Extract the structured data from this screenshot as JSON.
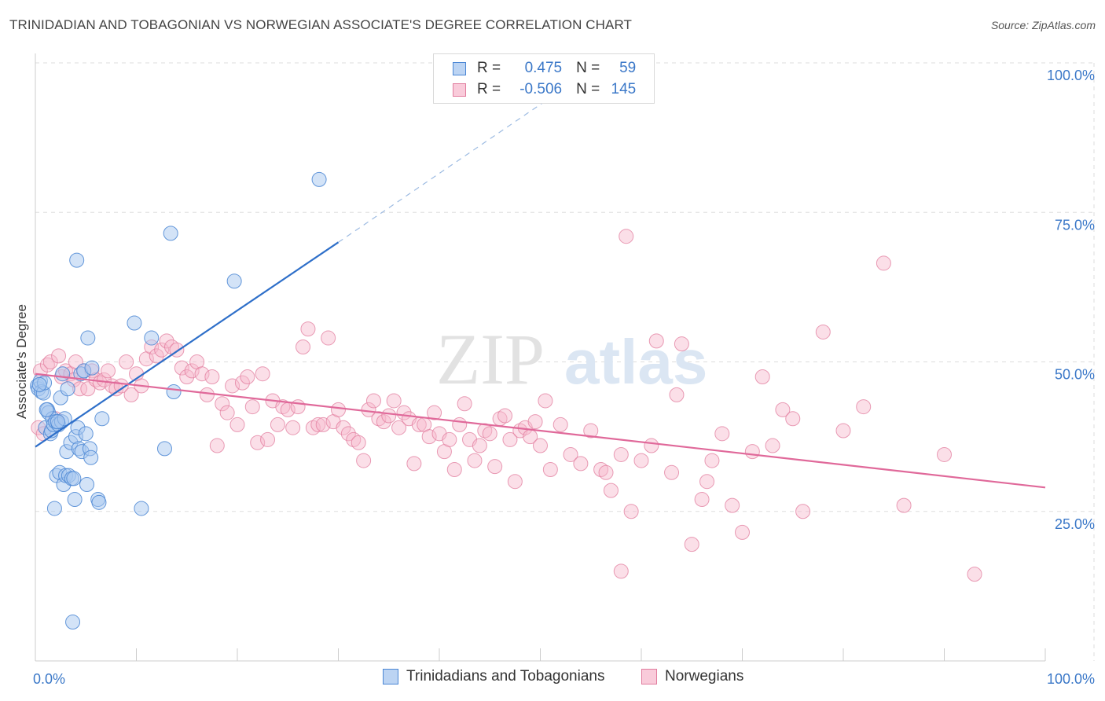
{
  "title": "TRINIDADIAN AND TOBAGONIAN VS NORWEGIAN ASSOCIATE'S DEGREE CORRELATION CHART",
  "source": "Source: ZipAtlas.com",
  "watermark": {
    "zip": "ZIP",
    "atlas": "atlas"
  },
  "legend": {
    "rows": [
      {
        "r_label": "R =",
        "r_value": "0.475",
        "n_label": "N =",
        "n_value": "59"
      },
      {
        "r_label": "R =",
        "r_value": "-0.506",
        "n_label": "N =",
        "n_value": "145"
      }
    ]
  },
  "colors": {
    "blue_fill": "#a8c8f0",
    "blue_stroke": "#4a86d4",
    "blue_line": "#2e6fc9",
    "pink_fill": "#f6b8cc",
    "pink_stroke": "#e17c9e",
    "pink_line": "#e0699a",
    "grid": "#dddddd",
    "tick_label": "#3b78c8"
  },
  "chart_data": {
    "type": "scatter",
    "title": "TRINIDADIAN AND TOBAGONIAN VS NORWEGIAN ASSOCIATE'S DEGREE CORRELATION CHART",
    "xlabel": "",
    "ylabel": "Associate's Degree",
    "xlim": [
      0,
      100
    ],
    "ylim": [
      0,
      100
    ],
    "x_tick_labels": [
      "0.0%",
      "100.0%"
    ],
    "y_ticks": [
      25,
      50,
      75,
      100
    ],
    "y_tick_labels": [
      "25.0%",
      "50.0%",
      "75.0%",
      "100.0%"
    ],
    "grid": true,
    "legend_position": "top-center",
    "series": [
      {
        "name": "Trinidadians and Tobagonians",
        "color": "#4a86d4",
        "r": 0.475,
        "n": 59,
        "trend": {
          "x0": 0,
          "y0": 35.8,
          "x1": 30,
          "y1": 70.0,
          "dash_to_x": 53,
          "dash_to_y": 96.5
        },
        "points": [
          [
            0.2,
            46.0
          ],
          [
            0.3,
            45.5
          ],
          [
            0.5,
            46.8
          ],
          [
            0.6,
            45.0
          ],
          [
            0.8,
            44.8
          ],
          [
            0.9,
            46.5
          ],
          [
            1.0,
            39.0
          ],
          [
            1.2,
            42.0
          ],
          [
            1.3,
            41.5
          ],
          [
            1.5,
            38.0
          ],
          [
            1.6,
            38.5
          ],
          [
            1.7,
            40.5
          ],
          [
            1.8,
            39.5
          ],
          [
            1.9,
            25.5
          ],
          [
            2.0,
            40.0
          ],
          [
            2.1,
            31.0
          ],
          [
            2.3,
            39.5
          ],
          [
            2.4,
            31.5
          ],
          [
            2.5,
            44.0
          ],
          [
            2.6,
            40.0
          ],
          [
            2.7,
            48.0
          ],
          [
            2.8,
            29.5
          ],
          [
            2.9,
            40.5
          ],
          [
            3.0,
            31.0
          ],
          [
            3.1,
            35.0
          ],
          [
            3.2,
            45.5
          ],
          [
            3.3,
            31.0
          ],
          [
            3.5,
            36.5
          ],
          [
            3.6,
            30.5
          ],
          [
            3.7,
            6.5
          ],
          [
            3.8,
            30.5
          ],
          [
            3.9,
            27.0
          ],
          [
            4.0,
            37.5
          ],
          [
            4.1,
            67.0
          ],
          [
            4.2,
            39.0
          ],
          [
            4.3,
            35.5
          ],
          [
            4.5,
            48.0
          ],
          [
            4.6,
            35.0
          ],
          [
            4.8,
            48.5
          ],
          [
            5.0,
            38.0
          ],
          [
            5.1,
            29.5
          ],
          [
            5.2,
            54.0
          ],
          [
            5.4,
            35.5
          ],
          [
            5.5,
            34.0
          ],
          [
            5.6,
            49.0
          ],
          [
            6.2,
            27.0
          ],
          [
            6.3,
            26.5
          ],
          [
            6.6,
            40.5
          ],
          [
            9.8,
            56.5
          ],
          [
            10.5,
            25.5
          ],
          [
            11.5,
            54.0
          ],
          [
            12.8,
            35.5
          ],
          [
            13.4,
            71.5
          ],
          [
            13.7,
            45.0
          ],
          [
            19.7,
            63.5
          ],
          [
            28.1,
            80.5
          ],
          [
            0.4,
            46.2
          ],
          [
            1.1,
            42.0
          ],
          [
            2.2,
            40.0
          ]
        ]
      },
      {
        "name": "Norwegians",
        "color": "#e17c9e",
        "r": -0.506,
        "n": 145,
        "trend": {
          "x0": 0,
          "y0": 48.0,
          "x1": 100,
          "y1": 29.0
        },
        "points": [
          [
            0.3,
            39.0
          ],
          [
            0.5,
            48.5
          ],
          [
            0.8,
            38.0
          ],
          [
            1.2,
            49.5
          ],
          [
            1.5,
            50.0
          ],
          [
            2.0,
            40.5
          ],
          [
            2.3,
            51.0
          ],
          [
            2.6,
            47.5
          ],
          [
            3.0,
            48.5
          ],
          [
            3.5,
            48.0
          ],
          [
            3.8,
            47.0
          ],
          [
            4.0,
            50.0
          ],
          [
            4.4,
            45.5
          ],
          [
            4.8,
            48.5
          ],
          [
            5.2,
            45.5
          ],
          [
            5.6,
            48.5
          ],
          [
            6.0,
            47.0
          ],
          [
            6.4,
            46.5
          ],
          [
            6.8,
            47.0
          ],
          [
            7.2,
            48.5
          ],
          [
            7.6,
            46.0
          ],
          [
            8.0,
            45.5
          ],
          [
            8.5,
            46.0
          ],
          [
            9.0,
            50.0
          ],
          [
            9.5,
            44.5
          ],
          [
            10.0,
            48.0
          ],
          [
            10.5,
            46.0
          ],
          [
            11.0,
            50.5
          ],
          [
            11.5,
            52.5
          ],
          [
            12.0,
            51.0
          ],
          [
            12.5,
            52.0
          ],
          [
            13.0,
            53.5
          ],
          [
            13.5,
            52.5
          ],
          [
            14.0,
            52.0
          ],
          [
            14.5,
            49.0
          ],
          [
            15.0,
            47.5
          ],
          [
            15.5,
            48.5
          ],
          [
            16.0,
            50.0
          ],
          [
            16.5,
            48.0
          ],
          [
            17.0,
            44.5
          ],
          [
            17.5,
            47.5
          ],
          [
            18.0,
            36.0
          ],
          [
            18.5,
            43.0
          ],
          [
            19.0,
            41.5
          ],
          [
            19.5,
            46.0
          ],
          [
            20.0,
            39.5
          ],
          [
            20.5,
            46.5
          ],
          [
            21.0,
            47.5
          ],
          [
            21.5,
            42.5
          ],
          [
            22.0,
            36.5
          ],
          [
            22.5,
            48.0
          ],
          [
            23.0,
            37.0
          ],
          [
            23.5,
            43.5
          ],
          [
            24.0,
            39.5
          ],
          [
            24.5,
            42.5
          ],
          [
            25.0,
            42.0
          ],
          [
            25.5,
            39.0
          ],
          [
            26.0,
            42.5
          ],
          [
            26.5,
            52.5
          ],
          [
            27.0,
            55.5
          ],
          [
            27.5,
            39.0
          ],
          [
            28.0,
            39.5
          ],
          [
            28.5,
            39.5
          ],
          [
            29.0,
            54.0
          ],
          [
            29.5,
            40.0
          ],
          [
            30.0,
            42.0
          ],
          [
            30.5,
            39.0
          ],
          [
            31.0,
            38.0
          ],
          [
            31.5,
            37.0
          ],
          [
            32.0,
            36.5
          ],
          [
            32.5,
            33.5
          ],
          [
            33.0,
            42.0
          ],
          [
            33.5,
            43.5
          ],
          [
            34.0,
            40.5
          ],
          [
            34.5,
            40.0
          ],
          [
            35.0,
            41.0
          ],
          [
            35.5,
            43.5
          ],
          [
            36.0,
            39.0
          ],
          [
            36.5,
            41.5
          ],
          [
            37.0,
            40.5
          ],
          [
            37.5,
            33.0
          ],
          [
            38.0,
            39.5
          ],
          [
            38.5,
            39.5
          ],
          [
            39.0,
            37.5
          ],
          [
            39.5,
            41.5
          ],
          [
            40.0,
            38.0
          ],
          [
            40.5,
            35.0
          ],
          [
            41.0,
            37.0
          ],
          [
            41.5,
            32.0
          ],
          [
            42.0,
            39.5
          ],
          [
            42.5,
            43.0
          ],
          [
            43.0,
            37.0
          ],
          [
            43.5,
            33.5
          ],
          [
            44.0,
            36.0
          ],
          [
            44.5,
            38.5
          ],
          [
            45.0,
            38.0
          ],
          [
            45.5,
            32.5
          ],
          [
            46.0,
            40.5
          ],
          [
            46.5,
            41.0
          ],
          [
            47.0,
            37.0
          ],
          [
            47.5,
            30.0
          ],
          [
            48.0,
            38.5
          ],
          [
            48.5,
            39.0
          ],
          [
            49.0,
            37.5
          ],
          [
            49.5,
            40.0
          ],
          [
            50.0,
            36.0
          ],
          [
            50.5,
            43.5
          ],
          [
            51.0,
            32.0
          ],
          [
            52.0,
            39.5
          ],
          [
            53.0,
            34.5
          ],
          [
            54.0,
            33.0
          ],
          [
            55.0,
            38.5
          ],
          [
            56.0,
            32.0
          ],
          [
            56.5,
            31.5
          ],
          [
            57.0,
            28.5
          ],
          [
            58.0,
            34.5
          ],
          [
            58.5,
            71.0
          ],
          [
            59.0,
            25.0
          ],
          [
            60.0,
            33.5
          ],
          [
            61.0,
            36.0
          ],
          [
            61.5,
            53.5
          ],
          [
            63.0,
            31.5
          ],
          [
            63.5,
            44.5
          ],
          [
            64.0,
            53.0
          ],
          [
            65.0,
            19.5
          ],
          [
            66.0,
            27.0
          ],
          [
            67.0,
            33.5
          ],
          [
            68.0,
            38.0
          ],
          [
            69.0,
            26.0
          ],
          [
            70.0,
            21.5
          ],
          [
            71.0,
            35.0
          ],
          [
            72.0,
            47.5
          ],
          [
            74.0,
            42.0
          ],
          [
            75.0,
            40.5
          ],
          [
            76.0,
            25.0
          ],
          [
            78.0,
            55.0
          ],
          [
            80.0,
            38.5
          ],
          [
            82.0,
            42.5
          ],
          [
            84.0,
            66.5
          ],
          [
            86.0,
            26.0
          ],
          [
            90.0,
            34.5
          ],
          [
            93.0,
            14.5
          ],
          [
            58.0,
            15.0
          ],
          [
            66.5,
            30.0
          ],
          [
            73.0,
            36.0
          ]
        ]
      }
    ]
  },
  "bottom_legend": [
    {
      "label": "Trinidadians and Tobagonians"
    },
    {
      "label": "Norwegians"
    }
  ]
}
